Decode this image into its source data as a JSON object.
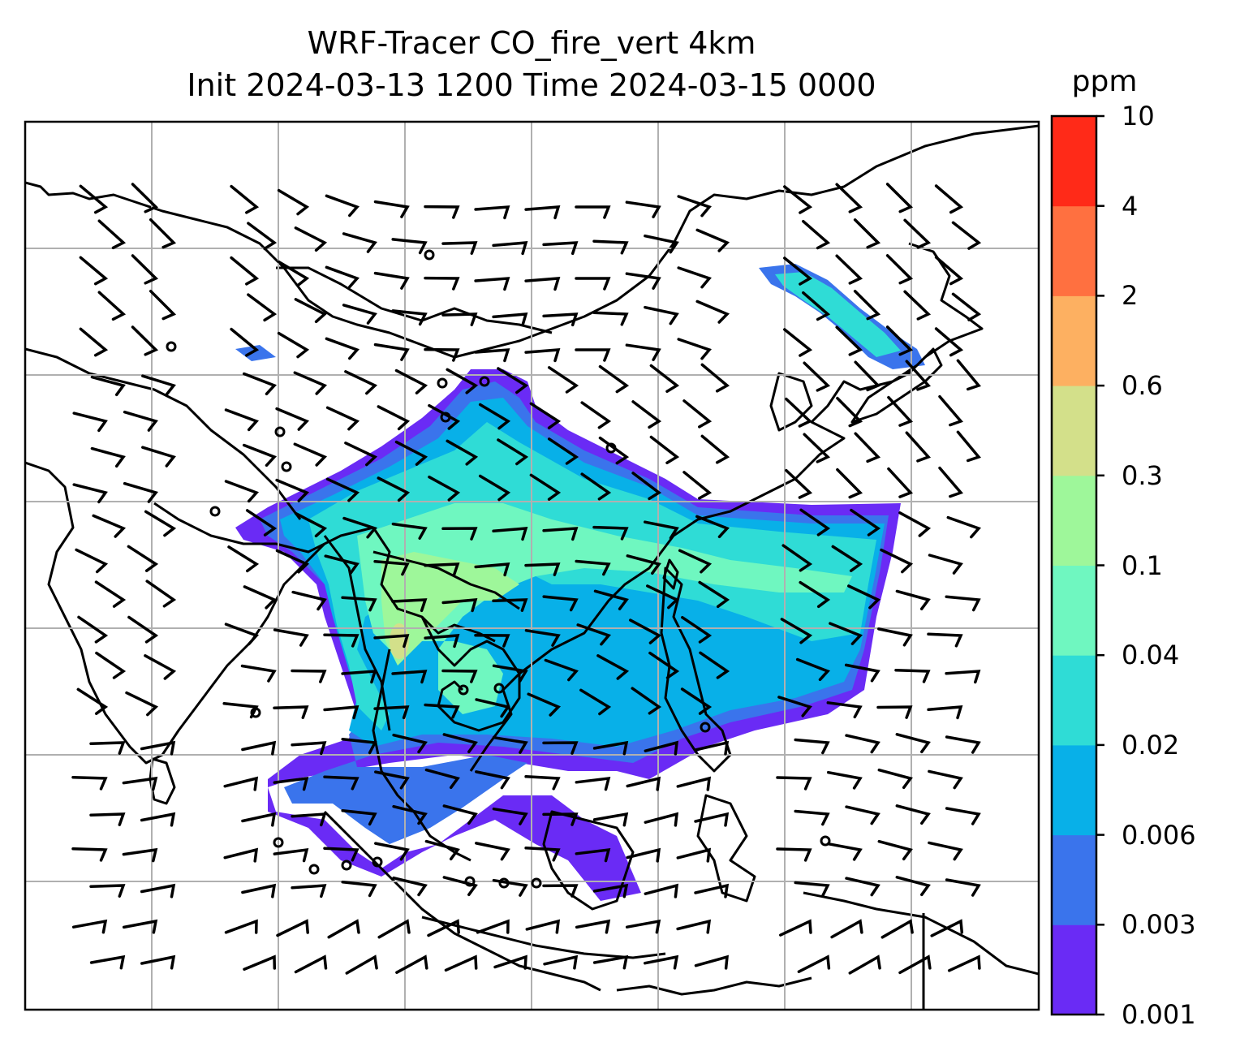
{
  "title": {
    "line1": "WRF-Tracer CO_fire_vert 4km",
    "line2": "Init 2024-03-13 1200 Time 2024-03-15 0000"
  },
  "colorbar": {
    "unit": "ppm",
    "levels": [
      "0.001",
      "0.003",
      "0.006",
      "0.02",
      "0.04",
      "0.1",
      "0.3",
      "0.6",
      "2",
      "4",
      "10"
    ],
    "colors": [
      "#6a2bf5",
      "#3a74ec",
      "#08b0e8",
      "#2fdcd6",
      "#6ff7c0",
      "#9ef79a",
      "#d3e08a",
      "#fdb061",
      "#ff7040",
      "#ff2a18"
    ]
  },
  "colors": {
    "grid": "#b0b0b0",
    "coast": "#000000",
    "plume_low": "#6a2bf5",
    "plume_mid": "#08b0e8",
    "plume_high": "#6ff7c0",
    "plume_peak": "#d3e08a"
  }
}
